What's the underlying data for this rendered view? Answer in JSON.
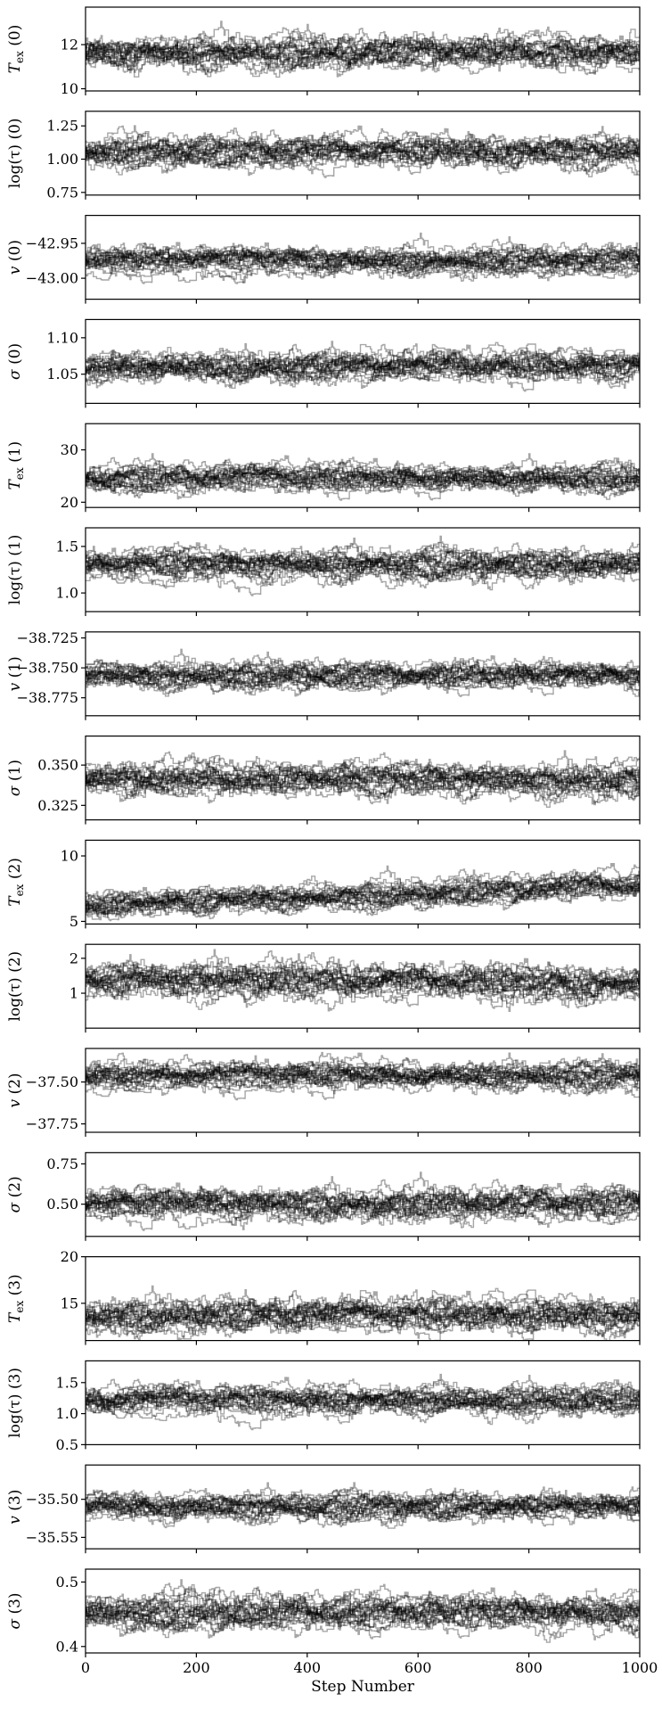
{
  "chart_data": {
    "type": "line",
    "description_of_series": "MCMC walker traces",
    "xlabel": "Step Number",
    "xlim": [
      0,
      1000
    ],
    "xticks": [
      0,
      200,
      400,
      600,
      800,
      1000
    ],
    "xtick_labels": [
      "0",
      "200",
      "400",
      "600",
      "800",
      "1000"
    ],
    "n_walkers_drawn": 22,
    "trace_color": "#000000",
    "trace_alpha": 0.35,
    "panels": [
      {
        "ylabel": "T_ex (0)",
        "ylim": [
          9.9,
          13.7
        ],
        "yticks": [
          10,
          12
        ],
        "ytick_labels": [
          "10",
          "12"
        ],
        "center": 11.55,
        "spread": 0.45,
        "drift": 0.0
      },
      {
        "ylabel": "log(τ) (0)",
        "ylim": [
          0.73,
          1.36
        ],
        "yticks": [
          0.75,
          1.0,
          1.25
        ],
        "ytick_labels": [
          "0.75",
          "1.00",
          "1.25"
        ],
        "center": 1.05,
        "spread": 0.07,
        "drift": 0.0
      },
      {
        "ylabel": "v (0)",
        "ylim": [
          -43.03,
          -42.91
        ],
        "yticks": [
          -43.0,
          -42.95
        ],
        "ytick_labels": [
          "−43.00",
          "−42.95"
        ],
        "center": -42.975,
        "spread": 0.012,
        "drift": 0.0
      },
      {
        "ylabel": "σ (0)",
        "ylim": [
          1.01,
          1.125
        ],
        "yticks": [
          1.05,
          1.1
        ],
        "ytick_labels": [
          "1.05",
          "1.10"
        ],
        "center": 1.058,
        "spread": 0.013,
        "drift": 0.0
      },
      {
        "ylabel": "T_ex (1)",
        "ylim": [
          19,
          35
        ],
        "yticks": [
          20,
          30
        ],
        "ytick_labels": [
          "20",
          "30"
        ],
        "center": 24.5,
        "spread": 1.6,
        "drift": 0.0
      },
      {
        "ylabel": "log(τ) (1)",
        "ylim": [
          0.8,
          1.7
        ],
        "yticks": [
          1.0,
          1.5
        ],
        "ytick_labels": [
          "1.0",
          "1.5"
        ],
        "center": 1.3,
        "spread": 0.1,
        "drift": 0.0
      },
      {
        "ylabel": "v (1)",
        "ylim": [
          -38.79,
          -38.72
        ],
        "yticks": [
          -38.775,
          -38.75,
          -38.725
        ],
        "ytick_labels": [
          "−38.775",
          "−38.750",
          "−38.725"
        ],
        "center": -38.757,
        "spread": 0.007,
        "drift": 0.0
      },
      {
        "ylabel": "σ (1)",
        "ylim": [
          0.316,
          0.368
        ],
        "yticks": [
          0.325,
          0.35
        ],
        "ytick_labels": [
          "0.325",
          "0.350"
        ],
        "center": 0.341,
        "spread": 0.006,
        "drift": 0.0
      },
      {
        "ylabel": "T_ex (2)",
        "ylim": [
          4.8,
          11.2
        ],
        "yticks": [
          5,
          10
        ],
        "ytick_labels": [
          "5",
          "10"
        ],
        "center": 6.2,
        "spread": 0.6,
        "drift": 1.5
      },
      {
        "ylabel": "log(τ) (2)",
        "ylim": [
          0.0,
          2.4
        ],
        "yticks": [
          1,
          2
        ],
        "ytick_labels": [
          "1",
          "2"
        ],
        "center": 1.4,
        "spread": 0.3,
        "drift": -0.2
      },
      {
        "ylabel": "v (2)",
        "ylim": [
          -37.8,
          -37.3
        ],
        "yticks": [
          -37.75,
          -37.5
        ],
        "ytick_labels": [
          "−37.75",
          "−37.50"
        ],
        "center": -37.47,
        "spread": 0.05,
        "drift": 0.0
      },
      {
        "ylabel": "σ (2)",
        "ylim": [
          0.3,
          0.82
        ],
        "yticks": [
          0.5,
          0.75
        ],
        "ytick_labels": [
          "0.50",
          "0.75"
        ],
        "center": 0.5,
        "spread": 0.06,
        "drift": 0.0
      },
      {
        "ylabel": "T_ex (3)",
        "ylim": [
          11,
          20
        ],
        "yticks": [
          15,
          20
        ],
        "ytick_labels": [
          "15",
          "20"
        ],
        "center": 13.6,
        "spread": 1.1,
        "drift": 0.0
      },
      {
        "ylabel": "log(τ) (3)",
        "ylim": [
          0.5,
          1.85
        ],
        "yticks": [
          0.5,
          1.0,
          1.5
        ],
        "ytick_labels": [
          "0.5",
          "1.0",
          "1.5"
        ],
        "center": 1.2,
        "spread": 0.14,
        "drift": 0.0
      },
      {
        "ylabel": "v (3)",
        "ylim": [
          -35.565,
          -35.455
        ],
        "yticks": [
          -35.55,
          -35.5
        ],
        "ytick_labels": [
          "−35.55",
          "−35.50"
        ],
        "center": -35.51,
        "spread": 0.011,
        "drift": 0.0
      },
      {
        "ylabel": "σ (3)",
        "ylim": [
          0.39,
          0.52
        ],
        "yticks": [
          0.4,
          0.5
        ],
        "ytick_labels": [
          "0.4",
          "0.5"
        ],
        "center": 0.452,
        "spread": 0.016,
        "drift": 0.0
      }
    ]
  }
}
